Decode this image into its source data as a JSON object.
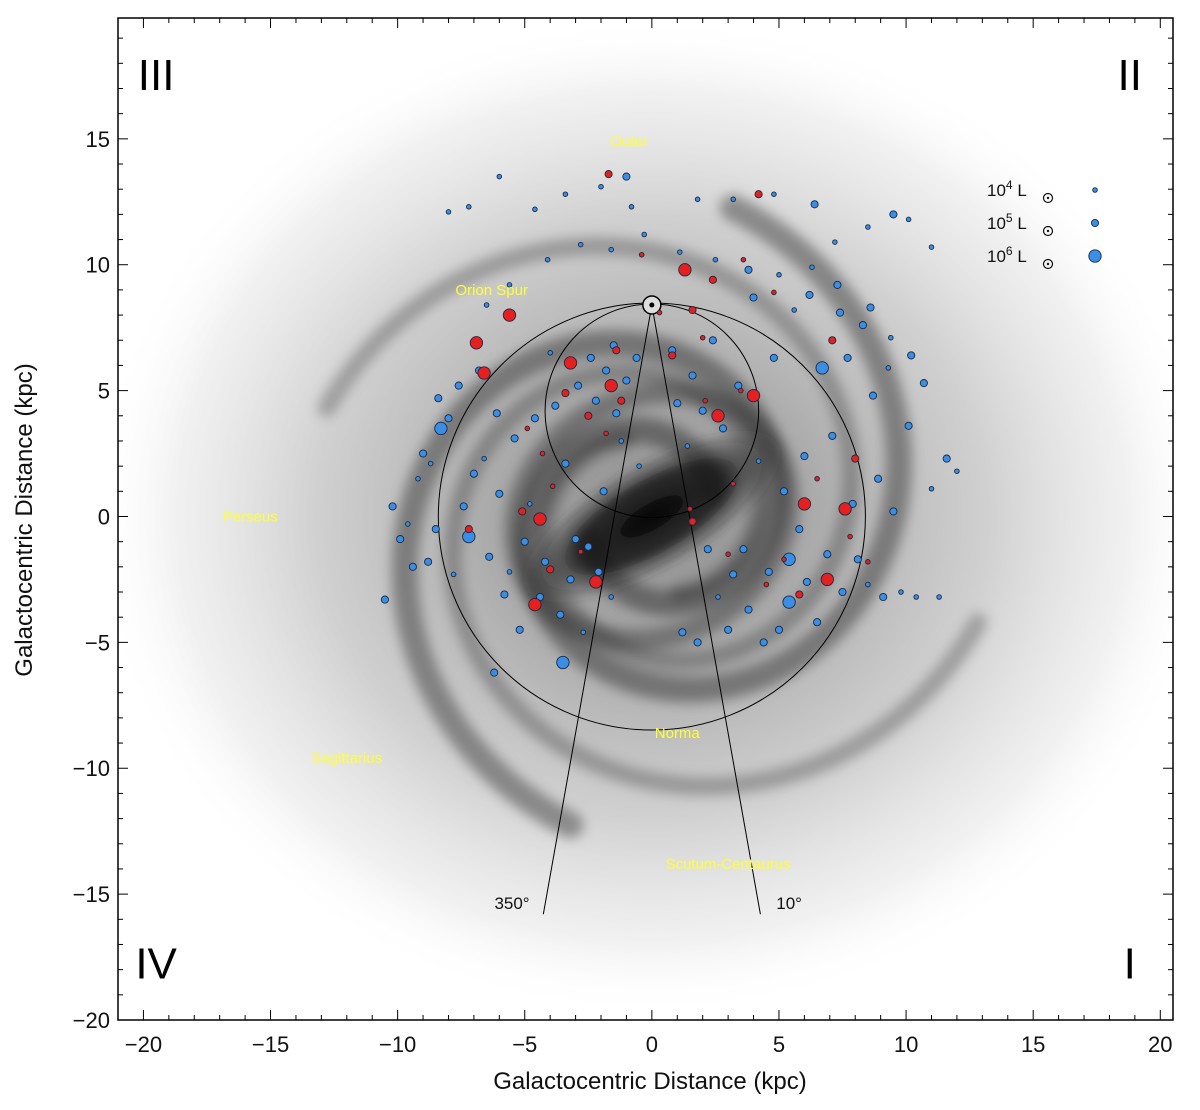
{
  "chart_data": {
    "type": "scatter",
    "xlabel": "Galactocentric Distance (kpc)",
    "ylabel": "Galactocentric Distance (kpc)",
    "xlim": [
      -21,
      20.5
    ],
    "ylim": [
      -20,
      19.8
    ],
    "xticks": [
      -20,
      -15,
      -10,
      -5,
      0,
      5,
      10,
      15,
      20
    ],
    "yticks": [
      -20,
      -15,
      -10,
      -5,
      0,
      5,
      10,
      15
    ],
    "xtick_labels": [
      "−20",
      "−15",
      "−10",
      "−5",
      "0",
      "5",
      "10",
      "15",
      "20"
    ],
    "ytick_labels": [
      "−20",
      "−15",
      "−10",
      "−5",
      "0",
      "5",
      "10",
      "15"
    ],
    "quadrants": [
      {
        "label": "III",
        "x": -19.5,
        "y": 17.5
      },
      {
        "label": "II",
        "x": 18.8,
        "y": 17.5
      },
      {
        "label": "IV",
        "x": -19.5,
        "y": -17.8
      },
      {
        "label": "I",
        "x": 18.8,
        "y": -17.8
      }
    ],
    "arm_labels": [
      {
        "name": "Outer",
        "x": -0.9,
        "y": 14.7
      },
      {
        "name": "Orion Spur",
        "x": -6.3,
        "y": 8.8
      },
      {
        "name": "Perseus",
        "x": -15.8,
        "y": -0.2
      },
      {
        "name": "Sagittarius",
        "x": -12,
        "y": -9.8
      },
      {
        "name": "Norma",
        "x": 1,
        "y": -8.8
      },
      {
        "name": "Scutum-Centaurus",
        "x": 3,
        "y": -14
      },
      {
        "name": "350°",
        "x": -5.5,
        "y": -15.6
      },
      {
        "name": "10°",
        "x": 5.4,
        "y": -15.6
      }
    ],
    "sun": {
      "x": 0,
      "y": 8.4
    },
    "large_circle": {
      "cx": 0,
      "cy": 0,
      "r": 8.4
    },
    "tangent_circle": {
      "cx": 0,
      "cy": 4.2,
      "r": 4.2
    },
    "longitude_lines": [
      {
        "label": "350°",
        "x2": -4.27,
        "y2": -15.8
      },
      {
        "label": "10°",
        "x2": 4.27,
        "y2": -15.8
      }
    ],
    "legend": [
      {
        "label": "10",
        "exp": "4",
        "unit": " L",
        "size": 1
      },
      {
        "label": "10",
        "exp": "5",
        "unit": " L",
        "size": 2
      },
      {
        "label": "10",
        "exp": "6",
        "unit": " L",
        "size": 3
      }
    ],
    "series": [
      {
        "name": "blue",
        "color": "#3a8ee6",
        "points": [
          [
            -10.5,
            -3.3,
            2
          ],
          [
            -10.2,
            0.4,
            2
          ],
          [
            -9.9,
            -0.9,
            2
          ],
          [
            -9.6,
            -0.3,
            1
          ],
          [
            -9.4,
            -2,
            2
          ],
          [
            -9.2,
            1.5,
            1
          ],
          [
            -9,
            2.5,
            2
          ],
          [
            -8.8,
            -1.8,
            2
          ],
          [
            -8.7,
            2.1,
            1
          ],
          [
            -8.5,
            -0.5,
            2
          ],
          [
            -8.4,
            4.7,
            2
          ],
          [
            -8.3,
            3.5,
            3
          ],
          [
            -8,
            3.9,
            2
          ],
          [
            -7.8,
            -2.3,
            1
          ],
          [
            -7.6,
            5.2,
            2
          ],
          [
            -7.4,
            0.4,
            2
          ],
          [
            -7.2,
            -0.8,
            3
          ],
          [
            -7,
            1.7,
            2
          ],
          [
            -6.8,
            5.8,
            2
          ],
          [
            -6.6,
            2.3,
            1
          ],
          [
            -6.4,
            -1.6,
            2
          ],
          [
            -6.2,
            -6.2,
            2
          ],
          [
            -6.1,
            4.1,
            2
          ],
          [
            -6,
            0.9,
            2
          ],
          [
            -5.8,
            -3.1,
            2
          ],
          [
            -5.6,
            -2.2,
            1
          ],
          [
            -5.4,
            3.1,
            2
          ],
          [
            -5.2,
            -4.5,
            2
          ],
          [
            -5,
            -1,
            2
          ],
          [
            -4.8,
            0.5,
            1
          ],
          [
            -4.6,
            3.9,
            2
          ],
          [
            -4.4,
            -3.2,
            2
          ],
          [
            -4.2,
            -1.8,
            2
          ],
          [
            -4,
            6.5,
            1
          ],
          [
            -3.8,
            4.4,
            2
          ],
          [
            -3.6,
            -3.9,
            2
          ],
          [
            -3.5,
            -5.8,
            3
          ],
          [
            -3.4,
            2.1,
            2
          ],
          [
            -3.2,
            -2.5,
            2
          ],
          [
            -3,
            -0.9,
            2
          ],
          [
            -2.9,
            5.2,
            2
          ],
          [
            -2.7,
            -4.6,
            1
          ],
          [
            -2.5,
            -1.2,
            2
          ],
          [
            -2.4,
            6.3,
            2
          ],
          [
            -2.2,
            4.6,
            2
          ],
          [
            -2.1,
            -2.2,
            2
          ],
          [
            -1.9,
            1,
            2
          ],
          [
            -1.8,
            5.8,
            2
          ],
          [
            -1.6,
            -3.2,
            1
          ],
          [
            -1.5,
            6.8,
            2
          ],
          [
            -1.4,
            4.1,
            2
          ],
          [
            -1.2,
            3,
            1
          ],
          [
            -1,
            5.4,
            2
          ],
          [
            -0.8,
            12.3,
            1
          ],
          [
            -0.6,
            6.3,
            2
          ],
          [
            -0.5,
            2,
            1
          ],
          [
            0.8,
            6.6,
            2
          ],
          [
            1,
            4.5,
            2
          ],
          [
            1.2,
            -4.6,
            2
          ],
          [
            1.4,
            2.8,
            1
          ],
          [
            1.6,
            5.6,
            2
          ],
          [
            1.8,
            -5,
            2
          ],
          [
            2,
            4.2,
            2
          ],
          [
            2.2,
            -1.3,
            2
          ],
          [
            2.4,
            7,
            2
          ],
          [
            2.6,
            -3.2,
            1
          ],
          [
            2.8,
            3.5,
            2
          ],
          [
            3,
            -4.5,
            2
          ],
          [
            3.2,
            -2.3,
            2
          ],
          [
            3.4,
            5.2,
            2
          ],
          [
            3.6,
            -1.3,
            2
          ],
          [
            3.8,
            -3.7,
            2
          ],
          [
            4,
            8.7,
            2
          ],
          [
            4.2,
            2.2,
            1
          ],
          [
            4.4,
            -5,
            2
          ],
          [
            4.6,
            -2.2,
            2
          ],
          [
            4.8,
            6.3,
            2
          ],
          [
            5,
            -4.5,
            2
          ],
          [
            5.2,
            1,
            2
          ],
          [
            5.4,
            -1.7,
            3
          ],
          [
            5.4,
            -3.4,
            3
          ],
          [
            5.6,
            8.2,
            1
          ],
          [
            5.8,
            -0.5,
            2
          ],
          [
            6,
            2.4,
            2
          ],
          [
            6.1,
            -2.6,
            2
          ],
          [
            6.3,
            9.9,
            1
          ],
          [
            6.5,
            -4.2,
            2
          ],
          [
            6.7,
            5.9,
            3
          ],
          [
            6.9,
            -1.5,
            2
          ],
          [
            7.1,
            3.2,
            2
          ],
          [
            7.3,
            9.2,
            2
          ],
          [
            7.5,
            -3,
            2
          ],
          [
            7.7,
            6.3,
            2
          ],
          [
            7.9,
            0.5,
            2
          ],
          [
            8.1,
            -1.7,
            2
          ],
          [
            8.3,
            7.6,
            2
          ],
          [
            8.5,
            -2.7,
            1
          ],
          [
            8.7,
            4.8,
            2
          ],
          [
            8.9,
            1.5,
            2
          ],
          [
            9.1,
            -3.2,
            2
          ],
          [
            9.3,
            5.9,
            1
          ],
          [
            9.5,
            0.2,
            2
          ],
          [
            9.8,
            -3,
            1
          ],
          [
            10.1,
            3.6,
            2
          ],
          [
            10.4,
            -3.2,
            1
          ],
          [
            10.7,
            5.3,
            2
          ],
          [
            11,
            1.1,
            1
          ],
          [
            11.3,
            -3.2,
            1
          ],
          [
            11.6,
            2.3,
            2
          ],
          [
            12,
            1.8,
            1
          ],
          [
            -8,
            12.1,
            1
          ],
          [
            -7.2,
            12.3,
            1
          ],
          [
            -6,
            13.5,
            1
          ],
          [
            -4.6,
            12.2,
            1
          ],
          [
            -3.4,
            12.8,
            1
          ],
          [
            -2,
            13.1,
            1
          ],
          [
            -1,
            13.5,
            2
          ],
          [
            1.8,
            12.6,
            1
          ],
          [
            3.2,
            12.6,
            1
          ],
          [
            4.8,
            12.8,
            1
          ],
          [
            6.4,
            12.4,
            2
          ],
          [
            7.2,
            10.9,
            1
          ],
          [
            8.5,
            11.5,
            1
          ],
          [
            9.5,
            12,
            2
          ],
          [
            10.1,
            11.8,
            1
          ],
          [
            11,
            10.7,
            1
          ],
          [
            -6.5,
            8.4,
            1
          ],
          [
            -5.6,
            9.2,
            1
          ],
          [
            -4.1,
            10.2,
            1
          ],
          [
            -2.8,
            10.8,
            1
          ],
          [
            -1.6,
            10.6,
            1
          ],
          [
            -0.3,
            11.2,
            1
          ],
          [
            1.1,
            10.5,
            1
          ],
          [
            2.5,
            10.2,
            1
          ],
          [
            3.8,
            9.8,
            2
          ],
          [
            5,
            9.6,
            1
          ],
          [
            6.2,
            8.8,
            2
          ],
          [
            7.4,
            8.1,
            2
          ],
          [
            8.6,
            8.3,
            2
          ],
          [
            9.4,
            7.1,
            1
          ],
          [
            10.2,
            6.4,
            2
          ]
        ]
      },
      {
        "name": "red",
        "color": "#e62020",
        "points": [
          [
            -7.2,
            -0.5,
            2
          ],
          [
            -6.9,
            6.9,
            3
          ],
          [
            -6.6,
            5.7,
            3
          ],
          [
            -5.6,
            8,
            3
          ],
          [
            -5.1,
            0.2,
            2
          ],
          [
            -4.6,
            -3.5,
            3
          ],
          [
            -4.4,
            -0.1,
            3
          ],
          [
            -4.3,
            2.5,
            1
          ],
          [
            -4,
            -2.1,
            2
          ],
          [
            -3.4,
            4.9,
            2
          ],
          [
            -3.2,
            6.1,
            3
          ],
          [
            -2.8,
            -1.4,
            1
          ],
          [
            -2.5,
            4,
            2
          ],
          [
            -2.2,
            -2.6,
            3
          ],
          [
            -1.8,
            3.3,
            1
          ],
          [
            -1.6,
            5.2,
            3
          ],
          [
            -1.4,
            6.6,
            2
          ],
          [
            -1.2,
            4.6,
            2
          ],
          [
            -1.7,
            13.6,
            2
          ],
          [
            -0.4,
            10.4,
            1
          ],
          [
            0.3,
            8.1,
            1
          ],
          [
            0.8,
            6.4,
            2
          ],
          [
            1.3,
            9.8,
            3
          ],
          [
            1.5,
            0.3,
            1
          ],
          [
            1.6,
            -0.2,
            2
          ],
          [
            1.6,
            8.2,
            2
          ],
          [
            2,
            7.1,
            1
          ],
          [
            2.4,
            9.4,
            2
          ],
          [
            2.6,
            4,
            3
          ],
          [
            2.1,
            4.6,
            1
          ],
          [
            3,
            -1.5,
            1
          ],
          [
            3.2,
            1.3,
            1
          ],
          [
            3.5,
            5,
            1
          ],
          [
            4,
            4.8,
            3
          ],
          [
            4.5,
            -2.7,
            1
          ],
          [
            4.8,
            8.9,
            1
          ],
          [
            5.2,
            -1.7,
            1
          ],
          [
            5.8,
            -3.1,
            2
          ],
          [
            6,
            0.5,
            3
          ],
          [
            6.5,
            1.5,
            1
          ],
          [
            6.9,
            -2.5,
            3
          ],
          [
            7.1,
            7,
            2
          ],
          [
            7.6,
            0.3,
            3
          ],
          [
            7.8,
            -0.8,
            1
          ],
          [
            8,
            2.3,
            2
          ],
          [
            8.5,
            -1.8,
            1
          ],
          [
            4.2,
            12.8,
            2
          ],
          [
            -4.9,
            3.5,
            1
          ],
          [
            -3.9,
            1.2,
            1
          ],
          [
            3.6,
            10.2,
            1
          ]
        ]
      }
    ]
  }
}
